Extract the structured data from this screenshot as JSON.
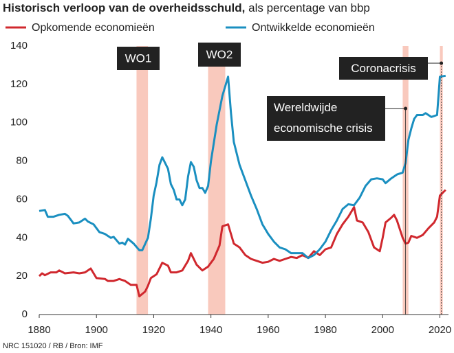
{
  "chart_data": {
    "type": "line",
    "title": "Historisch verloop van de overheidsschuld,",
    "subtitle": "als percentage van bbp",
    "source": "NRC 151020 / RB / Bron: IMF",
    "xlim": [
      1880,
      2023
    ],
    "xticks": [
      1880,
      1900,
      1920,
      1940,
      1960,
      1980,
      2000,
      2020
    ],
    "ylim": [
      0,
      140
    ],
    "yticks": [
      0,
      20,
      40,
      60,
      80,
      100,
      120,
      140
    ],
    "grid": false,
    "series": [
      {
        "name": "Opkomende economieën",
        "color": "#d0282e",
        "x": [
          1880,
          1881,
          1882,
          1884,
          1886,
          1887,
          1889,
          1892,
          1894,
          1896,
          1898,
          1900,
          1903,
          1904,
          1906,
          1908,
          1910,
          1912,
          1914,
          1915,
          1917,
          1918,
          1919,
          1921,
          1923,
          1925,
          1926,
          1928,
          1930,
          1932,
          1933,
          1935,
          1937,
          1939,
          1941,
          1943,
          1944,
          1946,
          1948,
          1950,
          1952,
          1954,
          1956,
          1958,
          1960,
          1962,
          1964,
          1966,
          1968,
          1970,
          1972,
          1974,
          1976,
          1978,
          1980,
          1982,
          1984,
          1986,
          1988,
          1990,
          1991,
          1993,
          1995,
          1997,
          1999,
          2000,
          2001,
          2003,
          2004,
          2005,
          2007,
          2008,
          2009,
          2010,
          2012,
          2014,
          2016,
          2018,
          2019,
          2020,
          2022
        ],
        "values": [
          20,
          21.5,
          20.5,
          22,
          22,
          23,
          21.5,
          22,
          21.5,
          22,
          24,
          19,
          18.5,
          17.5,
          17.5,
          18.5,
          17.5,
          15.5,
          15.5,
          9.5,
          12,
          15,
          19,
          21,
          27,
          25.5,
          22,
          22,
          23,
          28,
          32,
          26,
          23,
          25,
          29,
          36,
          46,
          47,
          37,
          35,
          31,
          29,
          28,
          27,
          27.5,
          29,
          28,
          29,
          30,
          29.5,
          31,
          29.5,
          33,
          31,
          34,
          35,
          42,
          47,
          51,
          56,
          49,
          48,
          43,
          35,
          33,
          40,
          48,
          50.5,
          52,
          49,
          40,
          37,
          37.5,
          41,
          40,
          41.5,
          45,
          48,
          51,
          62,
          65
        ]
      },
      {
        "name": "Ontwikkelde economieën",
        "color": "#1a8fc0",
        "x": [
          1880,
          1882,
          1883,
          1885,
          1887,
          1889,
          1890,
          1892,
          1894,
          1896,
          1897,
          1899,
          1901,
          1903,
          1905,
          1906,
          1908,
          1909,
          1910,
          1911,
          1913,
          1915,
          1916,
          1918,
          1919,
          1920,
          1921,
          1922,
          1923,
          1925,
          1926,
          1927,
          1928,
          1929,
          1930,
          1931,
          1932,
          1933,
          1934,
          1935,
          1936,
          1937,
          1938,
          1939,
          1940,
          1942,
          1944,
          1946,
          1947,
          1948,
          1950,
          1952,
          1954,
          1956,
          1958,
          1960,
          1962,
          1964,
          1966,
          1968,
          1972,
          1974,
          1976,
          1978,
          1980,
          1982,
          1984,
          1986,
          1988,
          1990,
          1992,
          1994,
          1996,
          1998,
          2000,
          2001,
          2003,
          2005,
          2007,
          2008,
          2009,
          2010,
          2011,
          2012,
          2014,
          2015,
          2017,
          2019,
          2020,
          2022
        ],
        "values": [
          54,
          54.5,
          51,
          51,
          52,
          52.5,
          51.5,
          47.5,
          48,
          50,
          48.5,
          47,
          43,
          42,
          40,
          40.5,
          37,
          37.5,
          36.5,
          39.5,
          37,
          33.5,
          33.5,
          40,
          50,
          62,
          69,
          78,
          82,
          76,
          68,
          65,
          60,
          60,
          57,
          60,
          72,
          79.5,
          77,
          70,
          66,
          66,
          63.5,
          67,
          80,
          99,
          114,
          124,
          105,
          90,
          78,
          70,
          62,
          55,
          47,
          42,
          38,
          35,
          34,
          32,
          32,
          29.5,
          31,
          34,
          38,
          44,
          49,
          55,
          57.5,
          57,
          61,
          67,
          70.5,
          71,
          70.5,
          68.5,
          71,
          73,
          74,
          79,
          91,
          97,
          102,
          104,
          104,
          105,
          103,
          104,
          124,
          124.5
        ]
      }
    ],
    "annotations": [
      {
        "lines": [
          "WO1"
        ],
        "x": [
          1914,
          1918
        ]
      },
      {
        "lines": [
          "WO2"
        ],
        "x": [
          1939,
          1945
        ]
      },
      {
        "lines": [
          "Wereldwijde",
          "economische crisis"
        ],
        "x": [
          2007,
          2009
        ]
      },
      {
        "lines": [
          "Coronacrisis"
        ],
        "x": [
          2020,
          2021
        ]
      }
    ]
  }
}
